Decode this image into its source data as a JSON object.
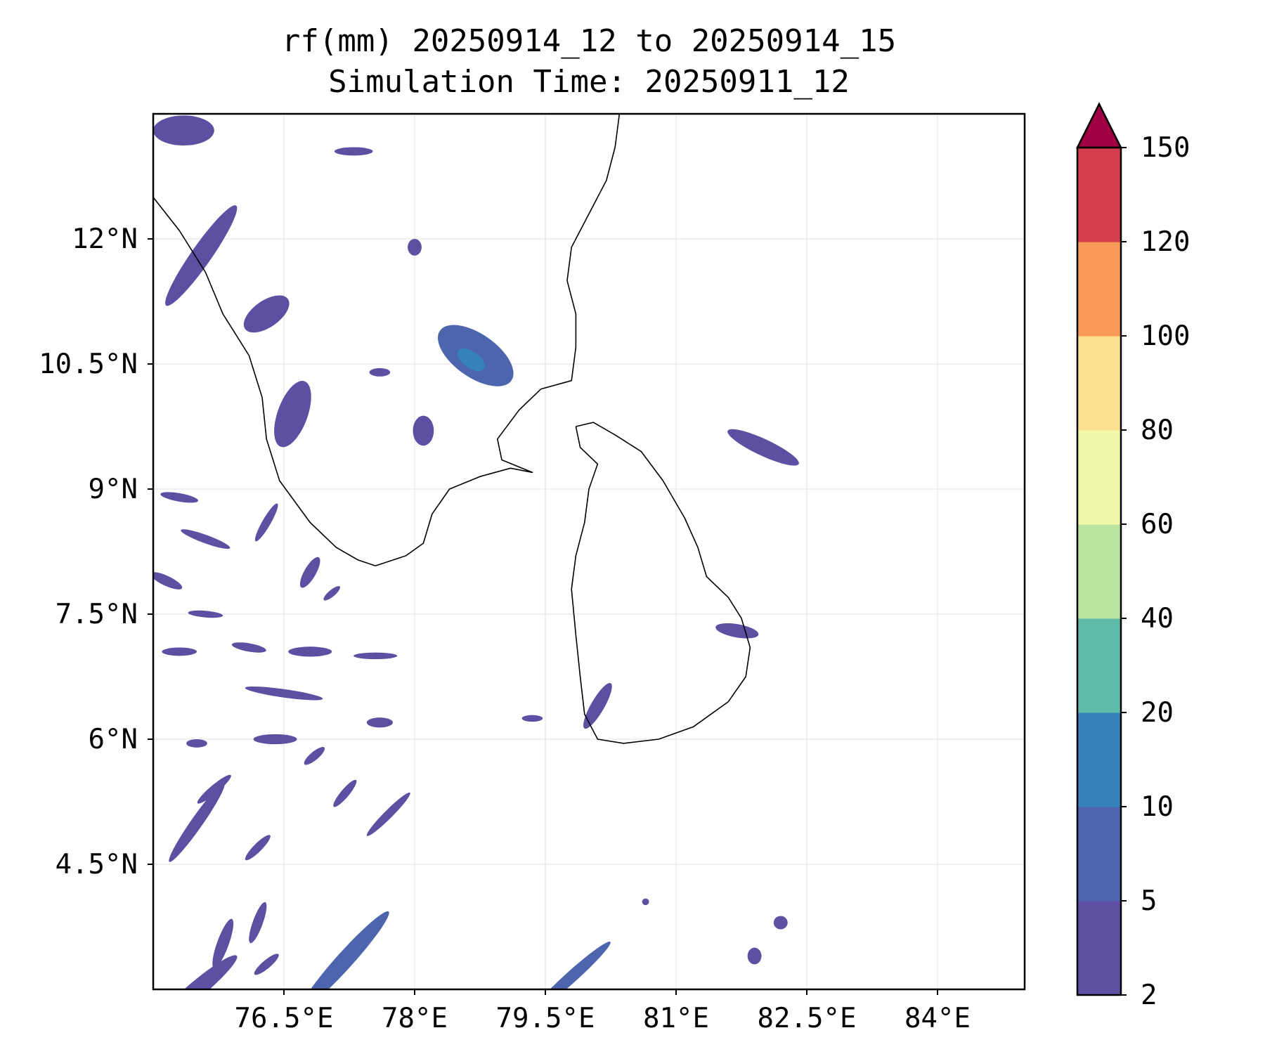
{
  "title": {
    "line1": "rf(mm) 20250914_12 to 20250914_15",
    "line2": "Simulation Time: 20250911_12"
  },
  "map": {
    "lon_range": [
      75.0,
      85.0
    ],
    "lat_range": [
      3.0,
      13.5
    ],
    "gridlines": true,
    "x_ticks": [
      {
        "value": 76.5,
        "label": "76.5°E"
      },
      {
        "value": 78.0,
        "label": "78°E"
      },
      {
        "value": 79.5,
        "label": "79.5°E"
      },
      {
        "value": 81.0,
        "label": "81°E"
      },
      {
        "value": 82.5,
        "label": "82.5°E"
      },
      {
        "value": 84.0,
        "label": "84°E"
      }
    ],
    "y_ticks": [
      {
        "value": 12.0,
        "label": "12°N"
      },
      {
        "value": 10.5,
        "label": "10.5°N"
      },
      {
        "value": 9.0,
        "label": "9°N"
      },
      {
        "value": 7.5,
        "label": "7.5°N"
      },
      {
        "value": 6.0,
        "label": "6°N"
      },
      {
        "value": 4.5,
        "label": "4.5°N"
      }
    ],
    "coastlines": {
      "india_west_coast": [
        [
          75.0,
          12.5
        ],
        [
          75.3,
          12.1
        ],
        [
          75.6,
          11.6
        ],
        [
          75.8,
          11.1
        ],
        [
          76.1,
          10.6
        ],
        [
          76.25,
          10.1
        ],
        [
          76.3,
          9.6
        ],
        [
          76.45,
          9.1
        ],
        [
          76.8,
          8.6
        ],
        [
          77.1,
          8.3
        ],
        [
          77.35,
          8.15
        ],
        [
          77.55,
          8.08
        ]
      ],
      "india_east_coast": [
        [
          77.55,
          8.08
        ],
        [
          77.9,
          8.2
        ],
        [
          78.1,
          8.35
        ],
        [
          78.2,
          8.7
        ],
        [
          78.4,
          9.0
        ],
        [
          78.75,
          9.15
        ],
        [
          79.1,
          9.25
        ],
        [
          79.35,
          9.2
        ],
        [
          79.0,
          9.35
        ],
        [
          78.95,
          9.6
        ],
        [
          79.2,
          9.95
        ],
        [
          79.45,
          10.2
        ],
        [
          79.8,
          10.3
        ],
        [
          79.85,
          10.7
        ],
        [
          79.85,
          11.1
        ],
        [
          79.75,
          11.5
        ],
        [
          79.8,
          11.9
        ],
        [
          80.0,
          12.3
        ],
        [
          80.2,
          12.7
        ],
        [
          80.3,
          13.1
        ],
        [
          80.35,
          13.5
        ]
      ],
      "sri_lanka": [
        [
          79.85,
          9.75
        ],
        [
          80.05,
          9.8
        ],
        [
          80.3,
          9.65
        ],
        [
          80.6,
          9.45
        ],
        [
          80.85,
          9.1
        ],
        [
          81.1,
          8.65
        ],
        [
          81.25,
          8.3
        ],
        [
          81.35,
          7.95
        ],
        [
          81.6,
          7.7
        ],
        [
          81.75,
          7.45
        ],
        [
          81.85,
          7.1
        ],
        [
          81.8,
          6.75
        ],
        [
          81.6,
          6.45
        ],
        [
          81.2,
          6.15
        ],
        [
          80.8,
          6.0
        ],
        [
          80.4,
          5.95
        ],
        [
          80.1,
          6.0
        ],
        [
          79.95,
          6.3
        ],
        [
          79.9,
          6.75
        ],
        [
          79.85,
          7.25
        ],
        [
          79.8,
          7.8
        ],
        [
          79.85,
          8.2
        ],
        [
          79.95,
          8.6
        ],
        [
          80.0,
          9.0
        ],
        [
          80.1,
          9.3
        ],
        [
          79.9,
          9.5
        ],
        [
          79.85,
          9.75
        ]
      ]
    },
    "rain_cells_mm": [
      {
        "lon": 75.35,
        "lat": 13.3,
        "rx": 0.35,
        "ry": 0.18,
        "angle": 0,
        "value": 4
      },
      {
        "lon": 77.3,
        "lat": 13.05,
        "rx": 0.22,
        "ry": 0.05,
        "angle": 0,
        "value": 3
      },
      {
        "lon": 75.55,
        "lat": 11.8,
        "rx": 0.7,
        "ry": 0.12,
        "angle": 55,
        "value": 4
      },
      {
        "lon": 76.3,
        "lat": 11.1,
        "rx": 0.3,
        "ry": 0.16,
        "angle": 35,
        "value": 4
      },
      {
        "lon": 76.6,
        "lat": 9.9,
        "rx": 0.4,
        "ry": 0.18,
        "angle": 70,
        "value": 3
      },
      {
        "lon": 78.7,
        "lat": 10.6,
        "rx": 0.5,
        "ry": 0.26,
        "angle": -35,
        "value": 6
      },
      {
        "lon": 78.65,
        "lat": 10.55,
        "rx": 0.18,
        "ry": 0.1,
        "angle": -35,
        "value": 12
      },
      {
        "lon": 78.1,
        "lat": 9.7,
        "rx": 0.12,
        "ry": 0.18,
        "angle": 0,
        "value": 3
      },
      {
        "lon": 77.6,
        "lat": 10.4,
        "rx": 0.12,
        "ry": 0.05,
        "angle": 0,
        "value": 3
      },
      {
        "lon": 78.0,
        "lat": 11.9,
        "rx": 0.08,
        "ry": 0.1,
        "angle": 0,
        "value": 3
      },
      {
        "lon": 82.0,
        "lat": 9.5,
        "rx": 0.45,
        "ry": 0.1,
        "angle": -25,
        "value": 4
      },
      {
        "lon": 81.7,
        "lat": 7.3,
        "rx": 0.25,
        "ry": 0.08,
        "angle": -10,
        "value": 4
      },
      {
        "lon": 80.1,
        "lat": 6.4,
        "rx": 0.3,
        "ry": 0.08,
        "angle": 60,
        "value": 3
      },
      {
        "lon": 79.35,
        "lat": 6.25,
        "rx": 0.12,
        "ry": 0.04,
        "angle": 0,
        "value": 3
      },
      {
        "lon": 75.5,
        "lat": 5.0,
        "rx": 0.55,
        "ry": 0.07,
        "angle": 55,
        "value": 3
      },
      {
        "lon": 77.2,
        "lat": 3.35,
        "rx": 0.75,
        "ry": 0.1,
        "angle": 48,
        "value": 6
      },
      {
        "lon": 79.8,
        "lat": 3.15,
        "rx": 0.6,
        "ry": 0.07,
        "angle": 42,
        "value": 6
      },
      {
        "lon": 75.5,
        "lat": 3.0,
        "rx": 0.6,
        "ry": 0.1,
        "angle": 40,
        "value": 4
      },
      {
        "lon": 75.8,
        "lat": 3.55,
        "rx": 0.3,
        "ry": 0.07,
        "angle": 70,
        "value": 3
      },
      {
        "lon": 82.2,
        "lat": 3.8,
        "rx": 0.08,
        "ry": 0.08,
        "angle": 0,
        "value": 3
      },
      {
        "lon": 81.9,
        "lat": 3.4,
        "rx": 0.08,
        "ry": 0.1,
        "angle": 0,
        "value": 3
      },
      {
        "lon": 80.65,
        "lat": 4.05,
        "rx": 0.04,
        "ry": 0.04,
        "angle": 0,
        "value": 3
      },
      {
        "lon": 75.3,
        "lat": 8.9,
        "rx": 0.22,
        "ry": 0.05,
        "angle": -10,
        "value": 3
      },
      {
        "lon": 75.6,
        "lat": 8.4,
        "rx": 0.3,
        "ry": 0.05,
        "angle": -20,
        "value": 3
      },
      {
        "lon": 75.15,
        "lat": 7.9,
        "rx": 0.2,
        "ry": 0.06,
        "angle": -25,
        "value": 3
      },
      {
        "lon": 76.1,
        "lat": 7.1,
        "rx": 0.2,
        "ry": 0.05,
        "angle": -10,
        "value": 3
      },
      {
        "lon": 76.8,
        "lat": 7.05,
        "rx": 0.25,
        "ry": 0.06,
        "angle": 0,
        "value": 3
      },
      {
        "lon": 77.55,
        "lat": 7.0,
        "rx": 0.25,
        "ry": 0.04,
        "angle": 0,
        "value": 3
      },
      {
        "lon": 76.5,
        "lat": 6.55,
        "rx": 0.45,
        "ry": 0.05,
        "angle": -8,
        "value": 3
      },
      {
        "lon": 75.3,
        "lat": 7.05,
        "rx": 0.2,
        "ry": 0.05,
        "angle": 0,
        "value": 3
      },
      {
        "lon": 76.4,
        "lat": 6.0,
        "rx": 0.25,
        "ry": 0.06,
        "angle": 0,
        "value": 3
      },
      {
        "lon": 77.6,
        "lat": 6.2,
        "rx": 0.15,
        "ry": 0.06,
        "angle": 0,
        "value": 3
      },
      {
        "lon": 75.7,
        "lat": 5.4,
        "rx": 0.25,
        "ry": 0.05,
        "angle": 40,
        "value": 3
      },
      {
        "lon": 77.2,
        "lat": 5.35,
        "rx": 0.2,
        "ry": 0.05,
        "angle": 50,
        "value": 3
      },
      {
        "lon": 77.7,
        "lat": 5.1,
        "rx": 0.35,
        "ry": 0.05,
        "angle": 45,
        "value": 3
      },
      {
        "lon": 76.2,
        "lat": 4.7,
        "rx": 0.2,
        "ry": 0.05,
        "angle": 45,
        "value": 3
      },
      {
        "lon": 76.8,
        "lat": 8.0,
        "rx": 0.2,
        "ry": 0.07,
        "angle": 60,
        "value": 3
      },
      {
        "lon": 77.05,
        "lat": 7.75,
        "rx": 0.12,
        "ry": 0.04,
        "angle": 40,
        "value": 3
      },
      {
        "lon": 76.3,
        "lat": 8.6,
        "rx": 0.25,
        "ry": 0.05,
        "angle": 60,
        "value": 3
      },
      {
        "lon": 75.6,
        "lat": 7.5,
        "rx": 0.2,
        "ry": 0.04,
        "angle": -5,
        "value": 3
      },
      {
        "lon": 75.5,
        "lat": 5.95,
        "rx": 0.12,
        "ry": 0.05,
        "angle": 0,
        "value": 3
      },
      {
        "lon": 76.85,
        "lat": 5.8,
        "rx": 0.15,
        "ry": 0.05,
        "angle": 40,
        "value": 3
      },
      {
        "lon": 76.2,
        "lat": 3.8,
        "rx": 0.25,
        "ry": 0.06,
        "angle": 70,
        "value": 3
      },
      {
        "lon": 76.3,
        "lat": 3.3,
        "rx": 0.18,
        "ry": 0.05,
        "angle": 40,
        "value": 3
      }
    ]
  },
  "colorbar": {
    "label_levels": [
      2,
      5,
      10,
      20,
      40,
      60,
      80,
      100,
      120,
      150
    ],
    "colors": [
      "#5e4fa2",
      "#4d65ad",
      "#3682ba",
      "#5fbaa8",
      "#bae3a0",
      "#f1f8aa",
      "#fbe08d",
      "#f99b57",
      "#d53e4f"
    ],
    "extend_color": "#9e0142"
  }
}
